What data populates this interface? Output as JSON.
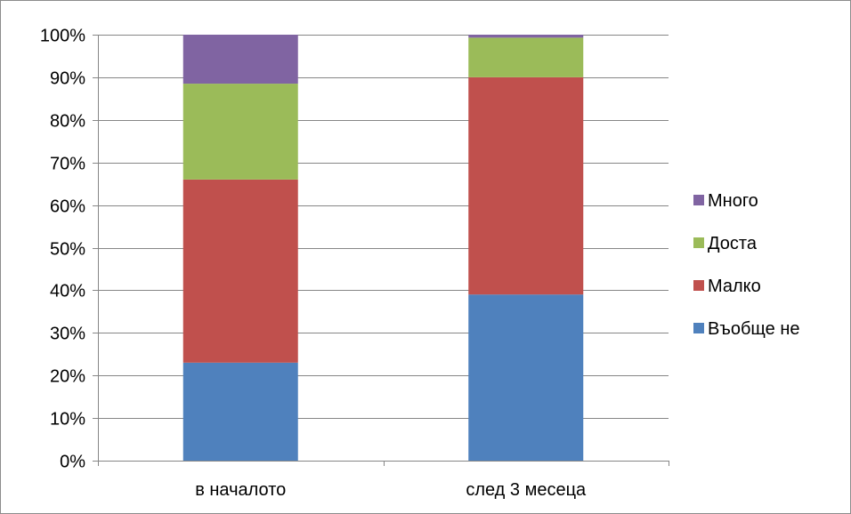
{
  "chart_data": {
    "type": "bar",
    "stacked": true,
    "categories": [
      "в началото",
      "след 3 месеца"
    ],
    "series": [
      {
        "name": "Въобще не",
        "color": "#4F81BD",
        "values": [
          23,
          39
        ]
      },
      {
        "name": "Малко",
        "color": "#C0504D",
        "values": [
          43,
          51
        ]
      },
      {
        "name": "Доста",
        "color": "#9BBB59",
        "values": [
          22.5,
          9.3
        ]
      },
      {
        "name": "Много",
        "color": "#8064A2",
        "values": [
          11.5,
          0.7
        ]
      }
    ],
    "yticks": [
      "0%",
      "10%",
      "20%",
      "30%",
      "40%",
      "50%",
      "60%",
      "70%",
      "80%",
      "90%",
      "100%"
    ],
    "ylim": [
      0,
      100
    ],
    "grid": true,
    "legend_position": "right"
  }
}
